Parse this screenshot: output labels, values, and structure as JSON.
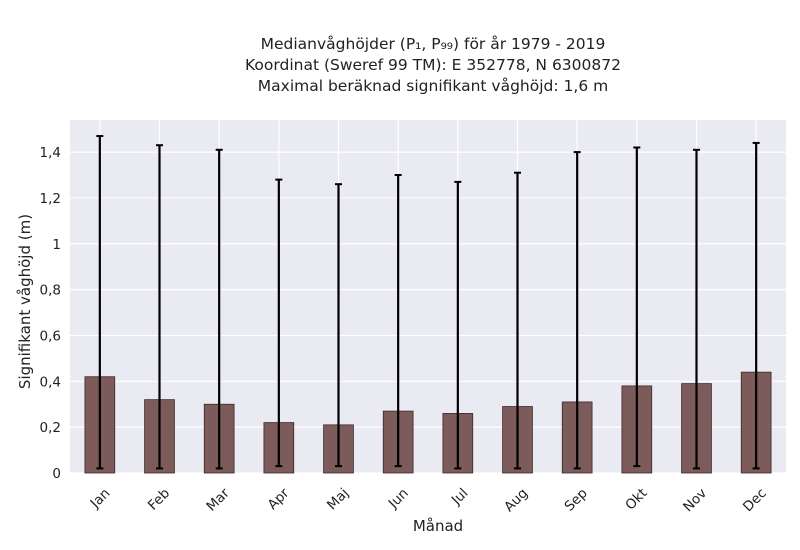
{
  "chart_data": {
    "type": "bar",
    "title_lines": [
      "Medianvåghöjder (P₁, P₉₉) för år 1979 - 2019",
      "Koordinat (Sweref 99 TM): E 352778, N 6300872",
      "Maximal beräknad signifikant våghöjd: 1,6 m"
    ],
    "xlabel": "Månad",
    "ylabel": "Signifikant våghöjd (m)",
    "categories": [
      "Jan",
      "Feb",
      "Mar",
      "Apr",
      "Maj",
      "Jun",
      "Jul",
      "Aug",
      "Sep",
      "Okt",
      "Nov",
      "Dec"
    ],
    "values": [
      0.42,
      0.32,
      0.3,
      0.22,
      0.21,
      0.27,
      0.26,
      0.29,
      0.31,
      0.38,
      0.39,
      0.44
    ],
    "error_low": [
      0.02,
      0.02,
      0.02,
      0.03,
      0.03,
      0.03,
      0.02,
      0.02,
      0.02,
      0.03,
      0.02,
      0.02
    ],
    "error_high": [
      1.47,
      1.43,
      1.41,
      1.28,
      1.26,
      1.3,
      1.27,
      1.31,
      1.4,
      1.42,
      1.41,
      1.44
    ],
    "ylim": [
      0,
      1.54
    ],
    "yticks": [
      0,
      0.2,
      0.4,
      0.6,
      0.8,
      1.0,
      1.2,
      1.4
    ],
    "ytick_labels": [
      "0",
      "0,2",
      "0,4",
      "0,6",
      "0,8",
      "1",
      "1,2",
      "1,4"
    ],
    "grid": true,
    "colors": {
      "bar": "#7d5b5b",
      "bar_edge": "#3a2a2a",
      "error": "#000000",
      "plot_bg": "#eaeaf2",
      "grid": "#ffffff"
    }
  }
}
